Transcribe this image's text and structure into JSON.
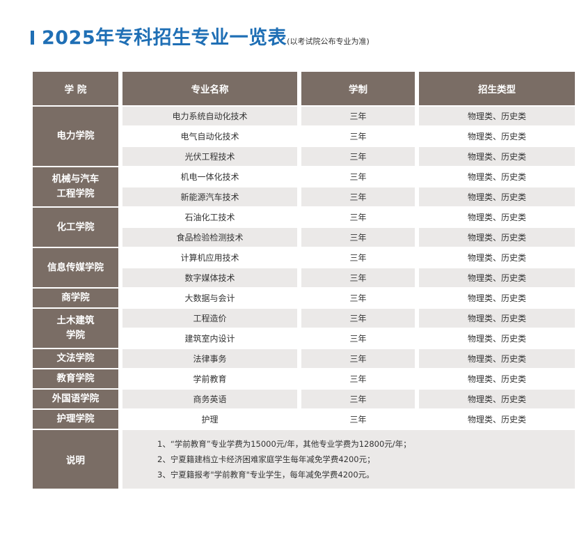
{
  "header": {
    "title": "2025年专科招生专业一览表",
    "subtitle": "(以考试院公布专业为准)"
  },
  "columns": [
    "学 院",
    "专业名称",
    "学制",
    "招生类型"
  ],
  "colleges": [
    {
      "name": "电力学院",
      "majors": [
        {
          "name": "电力系统自动化技术",
          "duration": "三年",
          "type": "物理类、历史类"
        },
        {
          "name": "电气自动化技术",
          "duration": "三年",
          "type": "物理类、历史类"
        },
        {
          "name": "光伏工程技术",
          "duration": "三年",
          "type": "物理类、历史类"
        }
      ]
    },
    {
      "name_line1": "机械与汽车",
      "name_line2": "工程学院",
      "majors": [
        {
          "name": "机电一体化技术",
          "duration": "三年",
          "type": "物理类、历史类"
        },
        {
          "name": "新能源汽车技术",
          "duration": "三年",
          "type": "物理类、历史类"
        }
      ]
    },
    {
      "name": "化工学院",
      "majors": [
        {
          "name": "石油化工技术",
          "duration": "三年",
          "type": "物理类、历史类"
        },
        {
          "name": "食品检验检测技术",
          "duration": "三年",
          "type": "物理类、历史类"
        }
      ]
    },
    {
      "name": "信息传媒学院",
      "majors": [
        {
          "name": "计算机应用技术",
          "duration": "三年",
          "type": "物理类、历史类"
        },
        {
          "name": "数字媒体技术",
          "duration": "三年",
          "type": "物理类、历史类"
        }
      ]
    },
    {
      "name": "商学院",
      "majors": [
        {
          "name": "大数据与会计",
          "duration": "三年",
          "type": "物理类、历史类"
        }
      ]
    },
    {
      "name_line1": "土木建筑",
      "name_line2": "学院",
      "majors": [
        {
          "name": "工程造价",
          "duration": "三年",
          "type": "物理类、历史类"
        },
        {
          "name": "建筑室内设计",
          "duration": "三年",
          "type": "物理类、历史类"
        }
      ]
    },
    {
      "name": "文法学院",
      "majors": [
        {
          "name": "法律事务",
          "duration": "三年",
          "type": "物理类、历史类"
        }
      ]
    },
    {
      "name": "教育学院",
      "majors": [
        {
          "name": "学前教育",
          "duration": "三年",
          "type": "物理类、历史类"
        }
      ]
    },
    {
      "name": "外国语学院",
      "majors": [
        {
          "name": "商务英语",
          "duration": "三年",
          "type": "物理类、历史类"
        }
      ]
    },
    {
      "name": "护理学院",
      "majors": [
        {
          "name": "护理",
          "duration": "三年",
          "type": "物理类、历史类"
        }
      ]
    }
  ],
  "notes": {
    "label": "说明",
    "lines": [
      "1、“学前教育”专业学费为15000元/年，其他专业学费为12800元/年；",
      "2、宁夏籍建档立卡经济困难家庭学生每年减免学费4200元；",
      "3、宁夏籍报考\"学前教育\"专业学生，每年减免学费4200元。"
    ]
  },
  "colors": {
    "title_blue": "#1f6fb5",
    "header_brown": "#7a6d65",
    "row_gray": "#ebe9e8"
  }
}
